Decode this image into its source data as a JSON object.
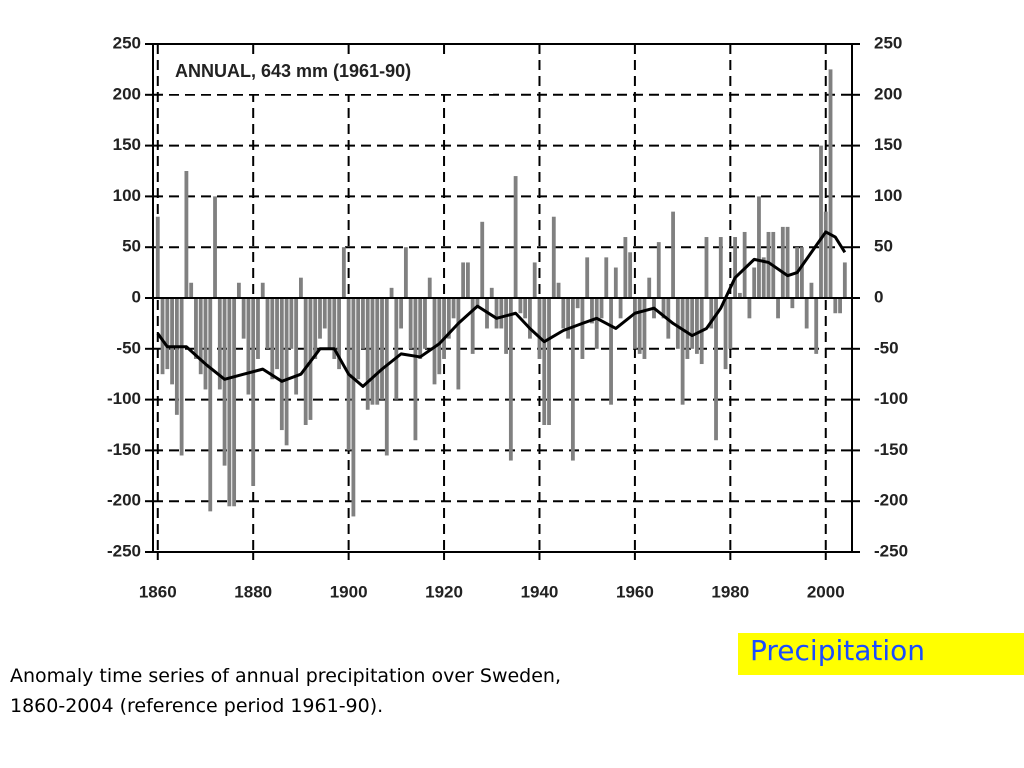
{
  "chart_data": {
    "type": "bar",
    "title": "ANNUAL, 643 mm (1961-90)",
    "x": [
      1860,
      1861,
      1862,
      1863,
      1864,
      1865,
      1866,
      1867,
      1868,
      1869,
      1870,
      1871,
      1872,
      1873,
      1874,
      1875,
      1876,
      1877,
      1878,
      1879,
      1880,
      1881,
      1882,
      1883,
      1884,
      1885,
      1886,
      1887,
      1888,
      1889,
      1890,
      1891,
      1892,
      1893,
      1894,
      1895,
      1896,
      1897,
      1898,
      1899,
      1900,
      1901,
      1902,
      1903,
      1904,
      1905,
      1906,
      1907,
      1908,
      1909,
      1910,
      1911,
      1912,
      1913,
      1914,
      1915,
      1916,
      1917,
      1918,
      1919,
      1920,
      1921,
      1922,
      1923,
      1924,
      1925,
      1926,
      1927,
      1928,
      1929,
      1930,
      1931,
      1932,
      1933,
      1934,
      1935,
      1936,
      1937,
      1938,
      1939,
      1940,
      1941,
      1942,
      1943,
      1944,
      1945,
      1946,
      1947,
      1948,
      1949,
      1950,
      1951,
      1952,
      1953,
      1954,
      1955,
      1956,
      1957,
      1958,
      1959,
      1960,
      1961,
      1962,
      1963,
      1964,
      1965,
      1966,
      1967,
      1968,
      1969,
      1970,
      1971,
      1972,
      1973,
      1974,
      1975,
      1976,
      1977,
      1978,
      1979,
      1980,
      1981,
      1982,
      1983,
      1984,
      1985,
      1986,
      1987,
      1988,
      1989,
      1990,
      1991,
      1992,
      1993,
      1994,
      1995,
      1996,
      1997,
      1998,
      1999,
      2000,
      2001,
      2002,
      2003,
      2004
    ],
    "values": [
      80,
      -75,
      -70,
      -85,
      -115,
      -155,
      125,
      15,
      -60,
      -75,
      -90,
      -210,
      100,
      -90,
      -165,
      -205,
      -205,
      15,
      -40,
      -95,
      -185,
      -60,
      15,
      -50,
      -80,
      -70,
      -130,
      -145,
      -50,
      -95,
      20,
      -125,
      -120,
      -60,
      -40,
      -30,
      -50,
      -60,
      -70,
      50,
      -150,
      -215,
      -80,
      -50,
      -110,
      -105,
      -105,
      -100,
      -155,
      10,
      -100,
      -30,
      50,
      -50,
      -140,
      -60,
      -50,
      20,
      -85,
      -75,
      -60,
      -40,
      -20,
      -90,
      35,
      35,
      -55,
      -10,
      75,
      -30,
      10,
      -30,
      -30,
      -55,
      -160,
      120,
      -15,
      -20,
      -40,
      35,
      -60,
      -125,
      -125,
      80,
      15,
      -30,
      -40,
      -160,
      -10,
      -60,
      40,
      -25,
      -50,
      -20,
      40,
      -105,
      30,
      -20,
      60,
      45,
      -50,
      -55,
      -60,
      20,
      -20,
      55,
      -20,
      -40,
      85,
      -50,
      -105,
      -60,
      -50,
      -55,
      -65,
      60,
      -30,
      -140,
      60,
      -70,
      -50,
      60,
      5,
      65,
      -20,
      30,
      100,
      40,
      65,
      65,
      -20,
      70,
      70,
      -10,
      50,
      50,
      -30,
      15,
      -55,
      150,
      85,
      225,
      -15,
      -15,
      35
    ],
    "color": "#808080",
    "line": {
      "color": "#000000",
      "x": [
        1860,
        1862,
        1866,
        1870,
        1874,
        1878,
        1882,
        1886,
        1890,
        1894,
        1897,
        1900,
        1903,
        1907,
        1911,
        1915,
        1919,
        1923,
        1927,
        1931,
        1935,
        1938,
        1941,
        1945,
        1949,
        1952,
        1956,
        1960,
        1964,
        1968,
        1972,
        1975,
        1978,
        1981,
        1985,
        1988,
        1992,
        1994,
        1997,
        2000,
        2002,
        2004
      ],
      "values": [
        -35,
        -48,
        -48,
        -65,
        -80,
        -75,
        -70,
        -82,
        -75,
        -50,
        -50,
        -75,
        -87,
        -70,
        -55,
        -58,
        -45,
        -25,
        -8,
        -20,
        -15,
        -30,
        -43,
        -32,
        -25,
        -20,
        -30,
        -15,
        -10,
        -25,
        -37,
        -30,
        -10,
        20,
        38,
        35,
        22,
        25,
        45,
        65,
        60,
        45
      ]
    },
    "xlim": [
      1859,
      2005.5
    ],
    "xticks": [
      1860,
      1880,
      1900,
      1920,
      1940,
      1960,
      1980,
      2000
    ],
    "ylim": [
      -250,
      250
    ],
    "yticks": [
      -250,
      -200,
      -150,
      -100,
      -50,
      0,
      50,
      100,
      150,
      200,
      250
    ],
    "y2lim": [
      -250,
      250
    ],
    "y2ticks": [
      -250,
      -200,
      -150,
      -100,
      -50,
      0,
      50,
      100,
      150,
      200,
      250
    ],
    "grid": true
  },
  "caption": [
    "Anomaly time series of annual precipitation over Sweden,",
    "1860-2004 (reference period 1961-90)."
  ],
  "label": "Precipitation"
}
